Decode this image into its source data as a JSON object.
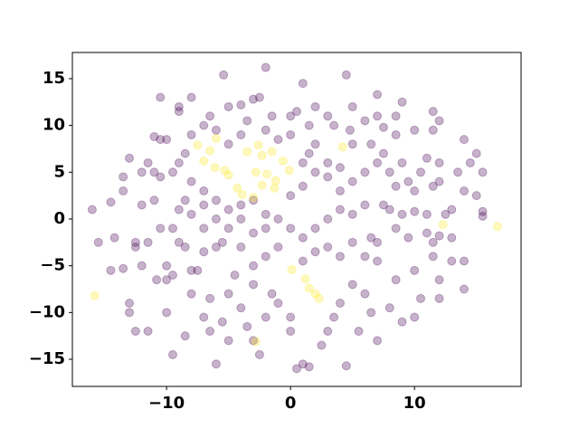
{
  "chart_data": {
    "type": "scatter",
    "xlim": [
      -17.6,
      18.6
    ],
    "ylim": [
      -17.9,
      17.8
    ],
    "xticks": [
      {
        "value": -10,
        "label": "−10"
      },
      0,
      10
    ],
    "yticks": [
      {
        "value": -15,
        "label": "−15"
      },
      {
        "value": -10,
        "label": "−10"
      },
      {
        "value": -5,
        "label": "−5"
      },
      0,
      5,
      10,
      15
    ],
    "series": [
      {
        "color": "#440154",
        "x": [
          -5.4,
          4.5,
          -2,
          1,
          -3,
          -2.5,
          -5,
          -4,
          -10.5,
          -9,
          -9,
          -8,
          -6.5,
          0.5,
          2,
          3,
          5,
          7,
          9,
          11.5,
          12,
          8.5,
          7,
          6,
          -1.5,
          -3.5,
          0,
          1.5,
          3.5,
          4.8,
          7.5,
          8.5,
          10,
          11.5,
          14,
          -16,
          -15.5,
          -14.5,
          -13.5,
          -14.2,
          -14.5,
          -13.5,
          -13.5,
          -13,
          -12,
          -11.5,
          -11,
          -10.5,
          -10,
          -11,
          -10.5,
          -11,
          -12,
          -12.5,
          -12.5,
          -12,
          -11.5,
          -10.5,
          -10,
          -9.5,
          -10,
          -9,
          -10.8,
          -13,
          -13,
          -12.5,
          -11.5,
          -10,
          -9.5,
          -8.5,
          -8,
          -7.5,
          -8,
          -6.5,
          -6.5,
          -6,
          -7,
          -5.5,
          -5,
          -4.5,
          -4,
          -3.5,
          -3,
          -2.5,
          -2,
          -1.5,
          -1,
          0,
          0,
          0.5,
          1,
          1.5,
          2.5,
          3,
          3.5,
          4,
          4.5,
          5,
          5.5,
          6,
          6.5,
          7,
          8,
          9,
          10,
          10.5,
          12,
          12,
          8.5,
          7,
          10,
          11.5,
          13,
          14,
          14,
          13,
          12,
          11,
          11.5,
          9.5,
          8.5,
          8,
          8.5,
          9.5,
          10,
          11.5,
          12,
          13.5,
          14.5,
          15,
          15.5,
          14,
          15,
          15.5,
          15.5,
          13,
          12.5,
          11,
          10,
          9,
          7.5,
          6,
          5,
          4,
          3,
          2,
          1,
          0,
          -1,
          -2,
          -3,
          -4,
          -5,
          -6,
          -7,
          -8,
          -9,
          -8.5,
          -7,
          -6,
          -5.5,
          -4,
          -3,
          -2,
          -1,
          1,
          2,
          3,
          4,
          5,
          6,
          6.5,
          7,
          4,
          3,
          2,
          1,
          1.5,
          2,
          3,
          4,
          5,
          6,
          7,
          7.5,
          8,
          9,
          10.5,
          11,
          12,
          6.5,
          5,
          -1,
          0,
          -2,
          -4,
          -5,
          -6,
          -7,
          -8,
          -8.5,
          -9,
          -9.5,
          -8,
          -7,
          -6,
          -5,
          -4,
          -3,
          -2,
          0,
          1,
          -7,
          -8.5,
          -9.5,
          -3,
          -5
        ],
        "values": [
          15.4,
          15.4,
          16.2,
          14.5,
          12.8,
          13,
          12,
          12.2,
          13,
          12,
          11.5,
          13,
          11,
          11.5,
          12,
          11,
          12,
          13.3,
          12.5,
          11.5,
          10.5,
          11,
          11,
          10.5,
          11,
          10.5,
          11,
          10,
          10,
          9.5,
          9.8,
          9,
          9.5,
          9.5,
          8.5,
          1,
          -2.5,
          -5.5,
          -5.3,
          -2,
          1.8,
          3,
          4.5,
          6.5,
          5,
          6,
          8.8,
          8.5,
          8.5,
          5,
          4.5,
          2,
          1.5,
          -2.5,
          -3,
          -5,
          -2.5,
          -1,
          -5,
          -6,
          -6.5,
          -2.5,
          -6.5,
          -10,
          -9,
          -12,
          -12,
          -10,
          -14.5,
          -12.5,
          -8,
          -5.5,
          -5.5,
          -8.5,
          -12,
          -15.5,
          -10.5,
          -11,
          -8,
          -6,
          -9.5,
          -11.5,
          -13,
          -14.5,
          -10.5,
          -8,
          -9,
          -10.5,
          -12,
          -16,
          -15.5,
          -15.8,
          -13.5,
          -12,
          -10.5,
          -9,
          -15.7,
          -7,
          -12,
          -8,
          -10,
          -13,
          -9.5,
          -11,
          -10.5,
          -8.5,
          -8.5,
          -6.5,
          -6.5,
          -4.5,
          -5.5,
          -4,
          -4.5,
          -4.5,
          -7.5,
          -2,
          -1.8,
          -1.5,
          -2.5,
          -2,
          -1,
          1,
          3.5,
          4,
          3,
          3.5,
          4,
          5,
          6,
          7,
          5,
          3,
          2.5,
          0.8,
          0.3,
          1,
          0.5,
          0.5,
          0.8,
          0.5,
          1.5,
          1.5,
          0.5,
          1,
          0,
          -1,
          -2,
          -1,
          0,
          -1,
          -1.5,
          0,
          -1,
          0,
          -1,
          0.5,
          1,
          -3,
          -3.5,
          -3,
          -2.5,
          -3,
          -5,
          -4,
          -3,
          -4.5,
          -3.5,
          -3,
          -4,
          -2.5,
          -4,
          -2,
          -2.5,
          3,
          4.5,
          5,
          6,
          7,
          8,
          6,
          5.5,
          4,
          5,
          6,
          7,
          5,
          6,
          5,
          6.5,
          6,
          8,
          8,
          8.5,
          9,
          9.5,
          9,
          8,
          9.5,
          10,
          9,
          7,
          6,
          5,
          4,
          3,
          2,
          1,
          1.5,
          2,
          0.5,
          2.5,
          3.5,
          1.5,
          2,
          -1,
          -7,
          -13
        ]
      },
      {
        "color": "#fde725",
        "x": [
          -15.8,
          -7.5,
          -6.5,
          -6,
          -7,
          -6.1,
          -5.3,
          -5,
          -3.5,
          -2.6,
          -2.3,
          -1.5,
          -2.8,
          -1.9,
          -1.2,
          -1.3,
          -0.6,
          -0.1,
          -4.3,
          -3.9,
          -3,
          -2.3,
          0.1,
          1.2,
          1.5,
          2,
          2.3,
          4.2,
          12.3,
          16.7,
          -2.8
        ],
        "values": [
          -8.2,
          7.9,
          7.3,
          8.6,
          6.2,
          5.5,
          5.2,
          4.7,
          7.2,
          7.9,
          6.8,
          7.2,
          5,
          4.8,
          4.1,
          3.3,
          6.2,
          5.2,
          3.3,
          2.6,
          2.3,
          3.6,
          -5.4,
          -6.4,
          -7.4,
          -8,
          -8.5,
          7.7,
          -0.6,
          -0.8,
          -13.1
        ]
      }
    ]
  }
}
